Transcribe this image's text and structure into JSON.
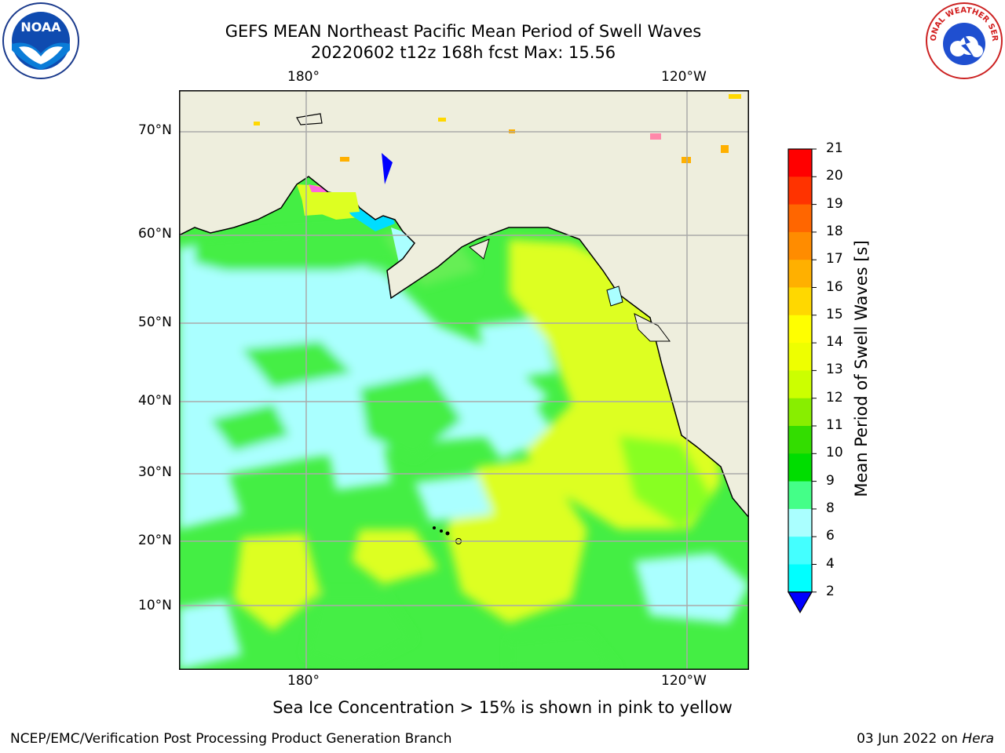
{
  "title": {
    "line1": "GEFS MEAN Northeast Pacific Mean Period of Swell Waves",
    "line2": "20220602 t12z 168h fcst   Max: 15.56"
  },
  "axes": {
    "top_ticks": [
      "180°",
      "120°W"
    ],
    "bottom_ticks": [
      "180°",
      "120°W"
    ],
    "left_ticks": [
      "70°N",
      "60°N",
      "50°N",
      "40°N",
      "30°N",
      "20°N",
      "10°N"
    ],
    "gridlines": true
  },
  "colorbar": {
    "label": "Mean Period of Swell Waves [s]",
    "ticks": [
      "21",
      "20",
      "19",
      "18",
      "17",
      "16",
      "15",
      "14",
      "13",
      "12",
      "11",
      "10",
      "9",
      "8",
      "6",
      "4",
      "2"
    ],
    "colors": [
      "#ff0000",
      "#ff3300",
      "#ff6600",
      "#ff8c00",
      "#ffb000",
      "#ffd800",
      "#ffff00",
      "#eeff00",
      "#ccff00",
      "#88ee00",
      "#33dd00",
      "#00dd00",
      "#44ff88",
      "#aaffff",
      "#44ffff",
      "#00ffff",
      "#0077ff",
      "#0000ff"
    ]
  },
  "caption": "Sea Ice Concentration > 15% is shown in pink to yellow",
  "footer": {
    "left": "NCEP/EMC/Verification Post Processing Product Generation Branch",
    "right_date": "03 Jun 2022 on ",
    "right_host": "Hera"
  },
  "logos": {
    "noaa_text": "NOAA",
    "nws_text": "NATIONAL WEATHER SERVICE"
  },
  "colors": {
    "land": "#eeeedd",
    "ocean_cyan": "#aaffff",
    "ocean_green": "#44ee44",
    "ocean_yellow": "#ddff22",
    "ice_blue": "#0000ff",
    "ice_pink": "#ff44dd",
    "grid": "#aaaaaa"
  }
}
